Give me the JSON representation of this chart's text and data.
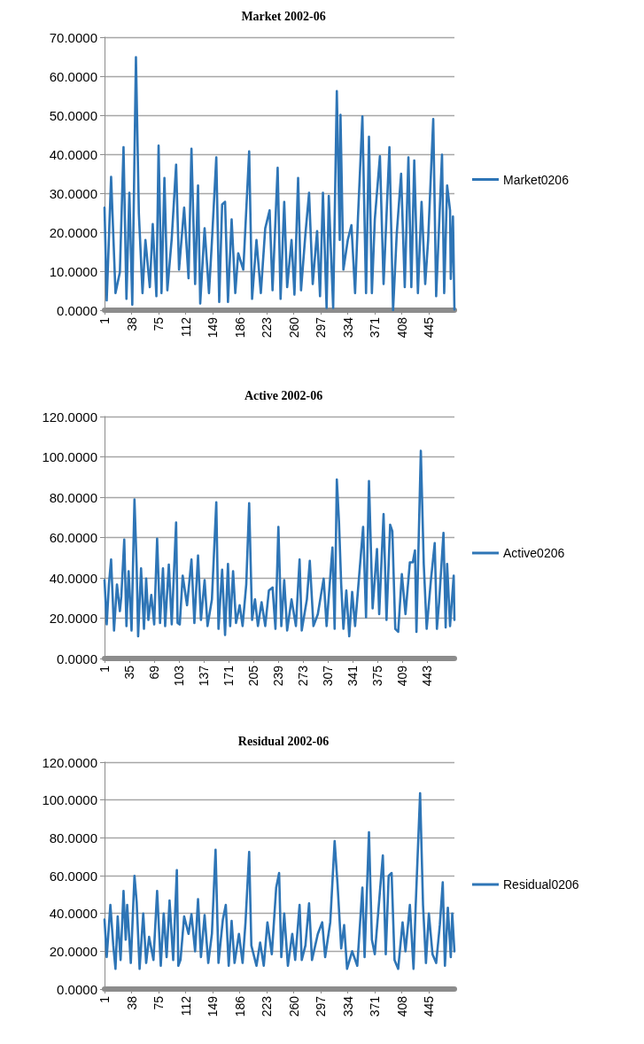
{
  "chart_data": [
    {
      "type": "line",
      "title": "Market 2002-06",
      "legend": "right",
      "grid": "y",
      "marker": "none",
      "line_style": "solid",
      "xlim": [
        1,
        480
      ],
      "xticks": [
        1,
        38,
        75,
        112,
        149,
        186,
        223,
        260,
        297,
        334,
        371,
        408,
        445
      ],
      "ylim": [
        0,
        70
      ],
      "yticks": [
        {
          "value": 0,
          "label": "0.0000"
        },
        {
          "value": 10,
          "label": "10.0000"
        },
        {
          "value": 20,
          "label": "20.0000"
        },
        {
          "value": 30,
          "label": "30.0000"
        },
        {
          "value": 40,
          "label": "40.0000"
        },
        {
          "value": 50,
          "label": "50.0000"
        },
        {
          "value": 60,
          "label": "60.0000"
        },
        {
          "value": 70,
          "label": "70.0000"
        }
      ],
      "series": [
        {
          "name": "Market0206",
          "color": "#2e75b6",
          "x": [
            1,
            4,
            10,
            16,
            22,
            27,
            31,
            35,
            39,
            44,
            48,
            53,
            57,
            63,
            67,
            72,
            75,
            79,
            83,
            87,
            93,
            99,
            103,
            110,
            116,
            120,
            125,
            129,
            132,
            138,
            144,
            148,
            154,
            158,
            162,
            166,
            170,
            175,
            180,
            184,
            191,
            199,
            203,
            209,
            215,
            221,
            227,
            231,
            238,
            242,
            247,
            251,
            257,
            261,
            266,
            270,
            276,
            281,
            286,
            292,
            296,
            300,
            305,
            308,
            314,
            319,
            323,
            324,
            328,
            334,
            339,
            344,
            348,
            354,
            359,
            363,
            367,
            371,
            378,
            383,
            391,
            396,
            401,
            407,
            412,
            417,
            421,
            425,
            430,
            435,
            440,
            444,
            451,
            455,
            463,
            466,
            470,
            474,
            475,
            478,
            480
          ],
          "values": [
            26.3,
            2.5,
            34.2,
            4.4,
            9.7,
            41.8,
            2.9,
            30.1,
            1.4,
            64.9,
            24.8,
            4.4,
            18,
            5.9,
            22.1,
            3.6,
            42.2,
            4.4,
            33.9,
            5.1,
            18.4,
            37.3,
            10.4,
            26.3,
            8.2,
            41.4,
            6.7,
            32,
            1.7,
            21,
            4.4,
            17.6,
            39.2,
            2.1,
            27.1,
            27.8,
            2.1,
            23.3,
            4.4,
            14.6,
            10.4,
            40.7,
            2.9,
            18,
            4.4,
            21,
            25.6,
            5.1,
            36.5,
            2.9,
            27.8,
            5.9,
            18,
            4,
            33.9,
            5.1,
            19.5,
            30.1,
            6.7,
            20.3,
            3.6,
            30.1,
            0.6,
            29.3,
            0.6,
            56.2,
            18,
            50.1,
            10.4,
            18,
            21.8,
            4.4,
            24,
            49.7,
            4.4,
            44.5,
            4.4,
            23.3,
            39.5,
            6.7,
            41.8,
            0,
            19.5,
            35,
            5.9,
            39.2,
            5.9,
            38.4,
            4.4,
            27.8,
            6.7,
            18,
            49,
            3.6,
            39.9,
            4.4,
            32,
            25.6,
            8,
            24,
            0.2
          ]
        }
      ]
    },
    {
      "type": "line",
      "title": "Active 2002-06",
      "legend": "right",
      "grid": "y",
      "marker": "none",
      "line_style": "solid",
      "xlim": [
        1,
        480
      ],
      "xticks": [
        1,
        35,
        69,
        103,
        137,
        171,
        205,
        239,
        273,
        307,
        341,
        375,
        409,
        443
      ],
      "ylim": [
        0,
        120
      ],
      "yticks": [
        {
          "value": 0,
          "label": "0.0000"
        },
        {
          "value": 20,
          "label": "20.0000"
        },
        {
          "value": 40,
          "label": "40.0000"
        },
        {
          "value": 60,
          "label": "60.0000"
        },
        {
          "value": 80,
          "label": "80.0000"
        },
        {
          "value": 100,
          "label": "100.0000"
        },
        {
          "value": 120,
          "label": "120.0000"
        }
      ],
      "series": [
        {
          "name": "Active0206",
          "color": "#2e75b6",
          "x": [
            1,
            4,
            7,
            10,
            14,
            18,
            22,
            24,
            28,
            31,
            34,
            38,
            42,
            45,
            47,
            51,
            55,
            58,
            61,
            65,
            69,
            73,
            77,
            81,
            84,
            89,
            93,
            99,
            101,
            104,
            108,
            114,
            120,
            124,
            129,
            133,
            138,
            142,
            148,
            154,
            157,
            162,
            166,
            170,
            173,
            177,
            181,
            186,
            190,
            195,
            199,
            203,
            207,
            211,
            216,
            221,
            226,
            231,
            235,
            239,
            243,
            247,
            251,
            257,
            263,
            268,
            271,
            278,
            282,
            287,
            293,
            301,
            305,
            313,
            316,
            319,
            322,
            325,
            328,
            332,
            336,
            340,
            344,
            355,
            359,
            363,
            368,
            374,
            377,
            383,
            387,
            392,
            395,
            399,
            403,
            408,
            413,
            419,
            423,
            426,
            428,
            434,
            438,
            442,
            448,
            453,
            456,
            459,
            465,
            468,
            470,
            474,
            479,
            480
          ],
          "values": [
            38.9,
            16.9,
            36.7,
            49.1,
            13.9,
            36.7,
            23.5,
            30.8,
            59,
            16.1,
            43.3,
            13.9,
            78.9,
            45.5,
            11,
            44.7,
            14.7,
            39.6,
            19.1,
            31.5,
            16.9,
            59.4,
            17.6,
            44.7,
            16.1,
            46.6,
            16.9,
            67.5,
            17.6,
            16.9,
            41.1,
            26.4,
            49.1,
            17.6,
            51.1,
            19.1,
            38.9,
            16.1,
            29.3,
            77.5,
            14.7,
            44,
            11.7,
            46.9,
            16.1,
            43.3,
            17.6,
            26.4,
            16.1,
            36.7,
            77,
            19.1,
            29.3,
            16.1,
            27.9,
            16.1,
            33.7,
            35.2,
            14.7,
            65.3,
            16.1,
            38.9,
            13.9,
            29.3,
            16.1,
            49.1,
            13.9,
            29.3,
            48.4,
            16.1,
            22,
            39.6,
            16.1,
            55,
            14.7,
            88.8,
            67.5,
            36.7,
            14.7,
            33.7,
            11,
            33,
            16.1,
            65.3,
            20.5,
            88,
            24.9,
            54.3,
            22,
            71.6,
            19.1,
            66.3,
            63.1,
            14.7,
            13.2,
            41.8,
            22,
            47.7,
            47.7,
            53.6,
            13.2,
            103,
            46.9,
            14.7,
            39.6,
            57.2,
            14.7,
            27.9,
            62.3,
            15.4,
            46.9,
            16.1,
            41.1,
            19.1
          ]
        }
      ]
    },
    {
      "type": "line",
      "title": "Residual 2002-06",
      "legend": "right",
      "grid": "y",
      "marker": "none",
      "line_style": "solid",
      "xlim": [
        1,
        480
      ],
      "xticks": [
        1,
        38,
        75,
        112,
        149,
        186,
        223,
        260,
        297,
        334,
        371,
        408,
        445
      ],
      "ylim": [
        0,
        120
      ],
      "yticks": [
        {
          "value": 0,
          "label": "0.0000"
        },
        {
          "value": 20,
          "label": "20.0000"
        },
        {
          "value": 40,
          "label": "40.0000"
        },
        {
          "value": 60,
          "label": "60.0000"
        },
        {
          "value": 80,
          "label": "80.0000"
        },
        {
          "value": 100,
          "label": "100.0000"
        },
        {
          "value": 120,
          "label": "120.0000"
        }
      ],
      "series": [
        {
          "name": "Residual0206",
          "color": "#2e75b6",
          "x": [
            1,
            4,
            9,
            13,
            16,
            19,
            23,
            27,
            30,
            32,
            37,
            42,
            45,
            49,
            54,
            58,
            62,
            68,
            73,
            78,
            82,
            86,
            90,
            95,
            100,
            102,
            105,
            110,
            116,
            120,
            125,
            129,
            133,
            138,
            143,
            148,
            153,
            157,
            163,
            167,
            171,
            175,
            179,
            185,
            190,
            194,
            199,
            202,
            209,
            214,
            219,
            224,
            230,
            236,
            240,
            243,
            247,
            252,
            258,
            262,
            268,
            271,
            276,
            281,
            285,
            293,
            299,
            303,
            310,
            316,
            320,
            325,
            329,
            333,
            340,
            347,
            354,
            357,
            363,
            367,
            371,
            377,
            382,
            386,
            390,
            394,
            398,
            403,
            409,
            413,
            419,
            424,
            427,
            433,
            437,
            441,
            445,
            450,
            455,
            460,
            464,
            467,
            471,
            475,
            477,
            480
          ],
          "values": [
            36.8,
            16.9,
            44.5,
            23,
            10.7,
            38.4,
            15.4,
            51.9,
            26.1,
            44.5,
            13.8,
            59.9,
            46,
            10.7,
            39.9,
            13.8,
            27.6,
            15.4,
            51.9,
            12.3,
            39.9,
            16.9,
            46.8,
            15.4,
            62.9,
            12.3,
            15.4,
            38.4,
            29.2,
            39.6,
            20,
            47.6,
            16.9,
            39.1,
            13.8,
            29.2,
            73.7,
            13.8,
            36.8,
            44.5,
            12.3,
            36.1,
            13.8,
            29.2,
            13.8,
            35.3,
            72.5,
            23,
            12.3,
            24.6,
            12.3,
            35.3,
            18.4,
            53.7,
            61.4,
            16.9,
            39.9,
            12.3,
            29.2,
            15.4,
            44.5,
            15.4,
            23,
            45.3,
            15.4,
            29.2,
            35.3,
            16.9,
            35.3,
            78.3,
            55.3,
            21.5,
            33.8,
            10.7,
            20,
            12.3,
            53.7,
            16.9,
            82.9,
            26.1,
            18.4,
            46.8,
            70.6,
            18.4,
            59.9,
            61.4,
            15.4,
            10.7,
            35.3,
            20,
            44.5,
            10.7,
            44.5,
            103.6,
            44.5,
            13.8,
            39.9,
            18.4,
            13.8,
            33.8,
            56.5,
            12.3,
            43,
            16.9,
            39.9,
            20
          ]
        }
      ]
    }
  ]
}
